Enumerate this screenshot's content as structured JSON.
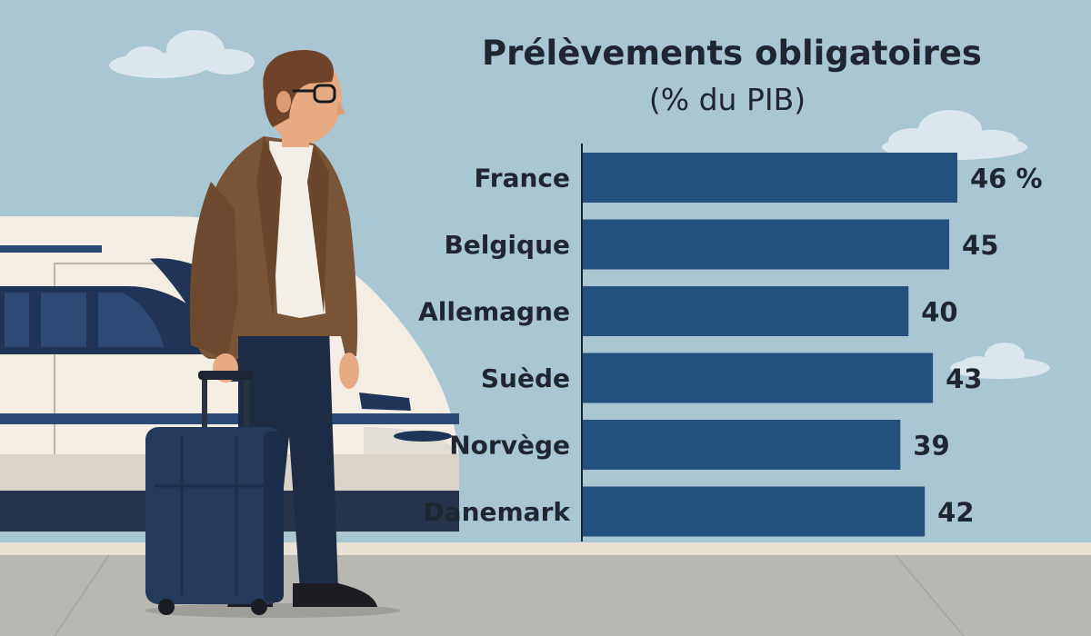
{
  "chart_data": {
    "type": "bar",
    "orientation": "horizontal",
    "title": "Prélèvements obligatoires",
    "subtitle": "(% du PIB)",
    "categories": [
      "France",
      "Belgique",
      "Allemagne",
      "Suède",
      "Norvège",
      "Danemark"
    ],
    "values": [
      46,
      45,
      40,
      43,
      39,
      42
    ],
    "value_labels": [
      "46 %",
      "45",
      "40",
      "43",
      "39",
      "42"
    ],
    "xlim": [
      0,
      46
    ],
    "grid": false,
    "legend": "none",
    "bar_color": "#24507e"
  },
  "colors": {
    "sky": "#a9c6d3",
    "platform": "#b9b7b2",
    "bar": "#24507e",
    "text": "#1f2630"
  },
  "illustration": {
    "elements": [
      "traveler-figure",
      "rolling-suitcase",
      "high-speed-train",
      "station-platform",
      "clouds"
    ]
  }
}
